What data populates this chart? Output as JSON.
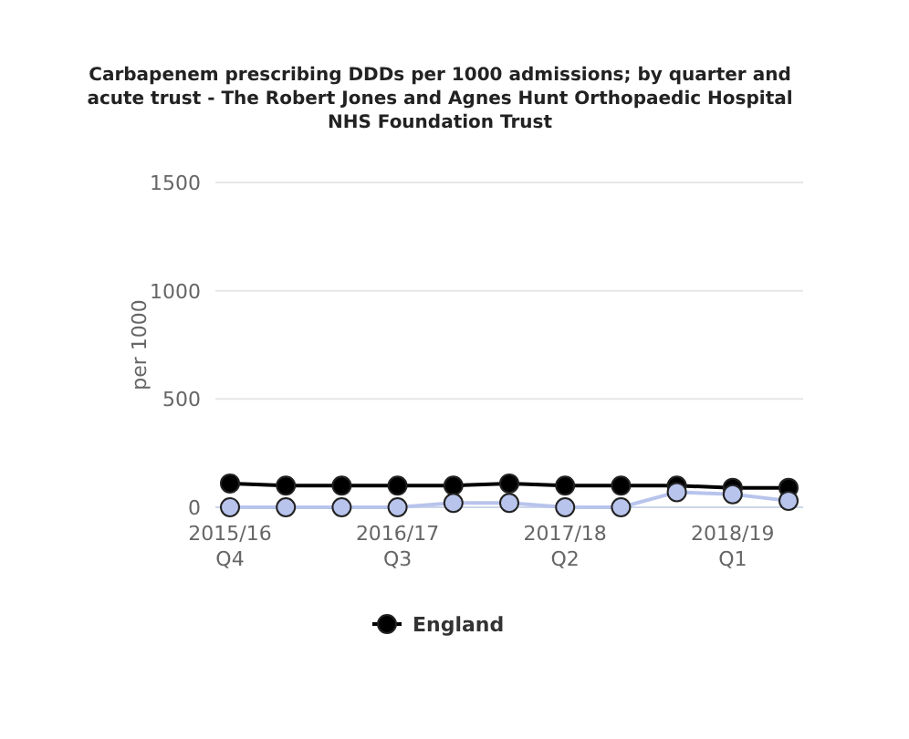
{
  "chart_data": {
    "type": "line",
    "title": "Carbapenem prescribing DDDs per 1000 admissions; by quarter and acute trust - The Robert Jones and Agnes Hunt Orthopaedic Hospital NHS Foundation Trust",
    "ylabel": "per 1000",
    "categories": [
      "2015/16 Q4",
      null,
      null,
      "2016/17 Q3",
      null,
      null,
      "2017/18 Q2",
      null,
      null,
      "2018/19 Q1",
      null
    ],
    "series": [
      {
        "color": "#b8c4ec",
        "values": [
          0,
          0,
          0,
          0,
          20,
          20,
          0,
          0,
          70,
          60,
          30
        ]
      },
      {
        "name": "England",
        "color": "#000000",
        "values": [
          110,
          100,
          100,
          100,
          100,
          110,
          100,
          100,
          100,
          90,
          90
        ]
      }
    ],
    "ylim": [
      0,
      1500
    ],
    "yticks": [
      0,
      500,
      1000,
      1500
    ],
    "grid": "y",
    "legend": "bottom",
    "marker": "circle"
  }
}
